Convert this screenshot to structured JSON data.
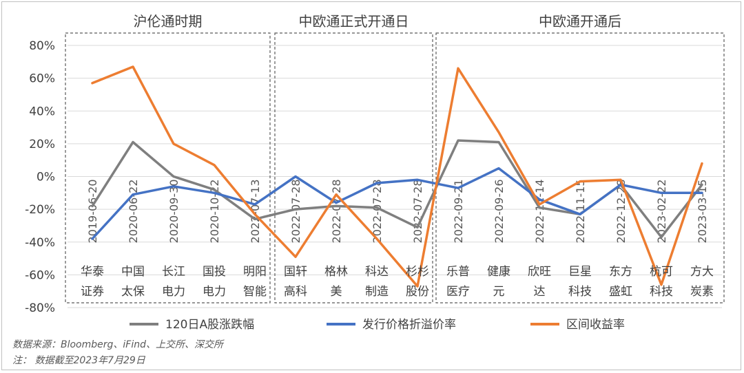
{
  "chart_data": {
    "type": "line",
    "periods": [
      {
        "label": "沪伦通时期",
        "start": 0,
        "end": 4
      },
      {
        "label": "中欧通正式开通日",
        "start": 5,
        "end": 8
      },
      {
        "label": "中欧通开通后",
        "start": 9,
        "end": 15
      }
    ],
    "categories": [
      {
        "name": [
          "华泰",
          "证券"
        ],
        "date": "2019-06-20"
      },
      {
        "name": [
          "中国",
          "太保"
        ],
        "date": "2020-06-22"
      },
      {
        "name": [
          "长江",
          "电力"
        ],
        "date": "2020-09-30"
      },
      {
        "name": [
          "国投",
          "电力"
        ],
        "date": "2020-10-22"
      },
      {
        "name": [
          "明阳",
          "智能"
        ],
        "date": "2022-07-13"
      },
      {
        "name": [
          "国轩",
          "高科"
        ],
        "date": "2022-07-28"
      },
      {
        "name": [
          "格林",
          "美"
        ],
        "date": "2022-07-28"
      },
      {
        "name": [
          "科达",
          "制造"
        ],
        "date": "2022-07-28"
      },
      {
        "name": [
          "杉杉",
          "股份"
        ],
        "date": "2022-07-28"
      },
      {
        "name": [
          "乐普",
          "医疗"
        ],
        "date": "2022-09-21"
      },
      {
        "name": [
          "健康",
          "元"
        ],
        "date": "2022-09-26"
      },
      {
        "name": [
          "欣旺",
          "达"
        ],
        "date": "2022-11-14"
      },
      {
        "name": [
          "巨星",
          "科技"
        ],
        "date": "2022-11-15"
      },
      {
        "name": [
          "东方",
          "盛虹"
        ],
        "date": "2022-12-28"
      },
      {
        "name": [
          "杭可",
          "科技"
        ],
        "date": "2023-02-22"
      },
      {
        "name": [
          "方大",
          "炭素"
        ],
        "date": "2023-03-15"
      }
    ],
    "series": [
      {
        "name": "120日A股涨跌幅",
        "color": "#7f7f7f",
        "values": [
          -18,
          21,
          0,
          -8,
          -26,
          -20,
          -18,
          -19,
          -31,
          22,
          21,
          -19,
          -23,
          -5,
          -37,
          -5
        ]
      },
      {
        "name": "发行价格折溢价率",
        "color": "#4472c4",
        "values": [
          -38,
          -11,
          -6,
          -10,
          -17,
          0,
          -16,
          -4,
          -2,
          -7,
          5,
          -14,
          -23,
          -5,
          -10,
          -10
        ]
      },
      {
        "name": "区间收益率",
        "color": "#ed7d31",
        "values": [
          57,
          67,
          20,
          7,
          -23,
          -49,
          -11,
          -38,
          -67,
          66,
          27,
          -17,
          -3,
          -2,
          -66,
          8
        ]
      }
    ],
    "yticks": [
      "80%",
      "60%",
      "40%",
      "20%",
      "0%",
      "-20%",
      "-40%",
      "-60%",
      "-80%"
    ],
    "ylim": [
      -80,
      80
    ]
  },
  "notes": {
    "source": "数据来源：Bloomberg、iFind、上交所、深交所",
    "note": "注：  数据截至2023年7月29日"
  }
}
